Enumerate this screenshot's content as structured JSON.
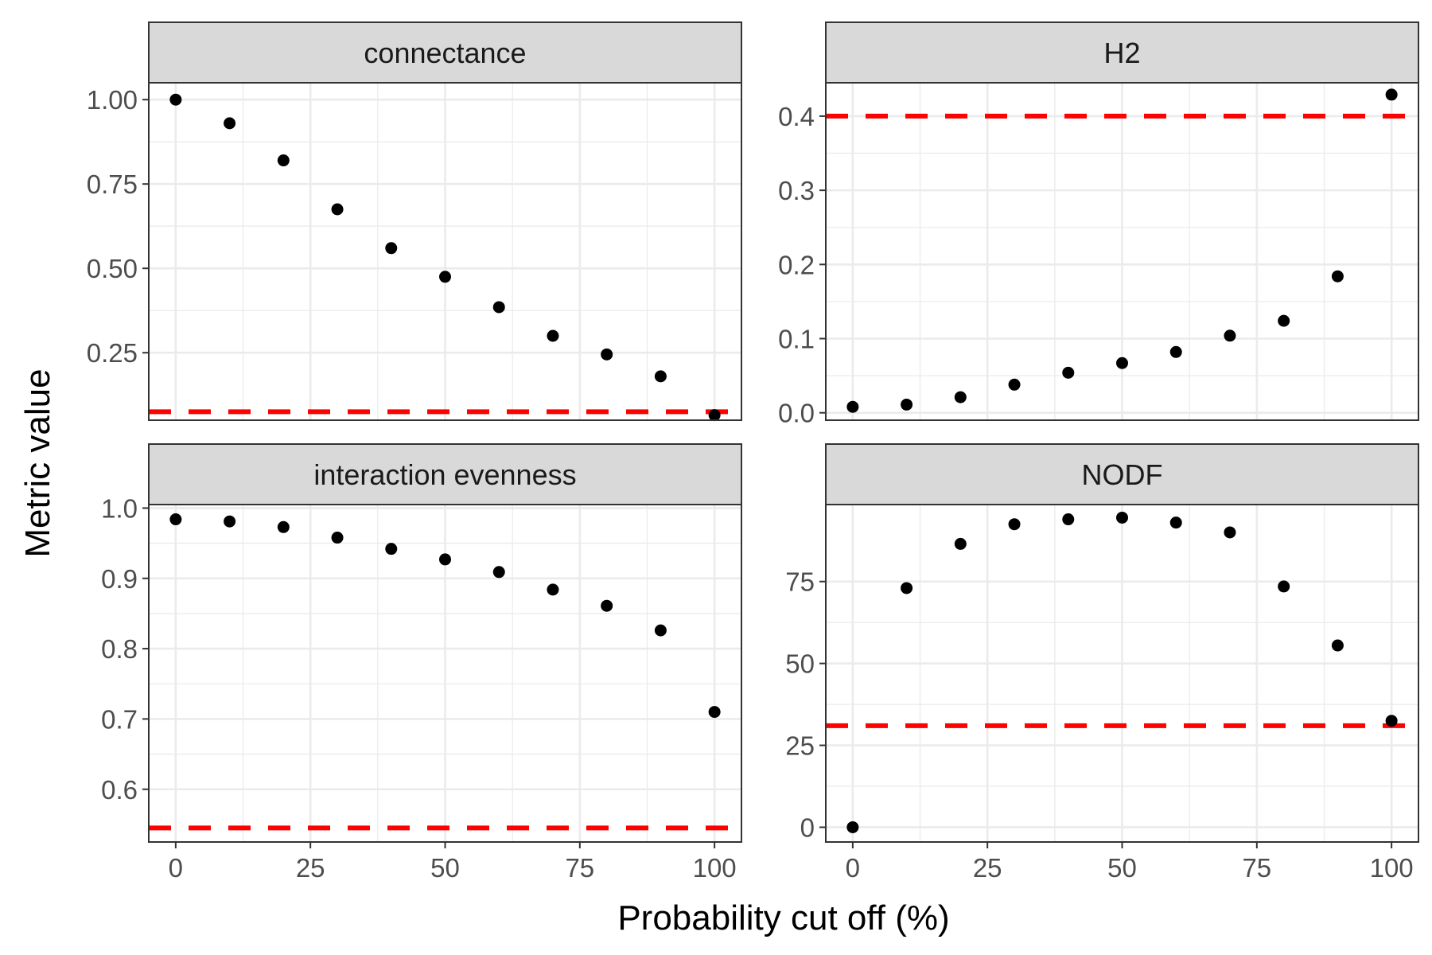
{
  "chart_data": {
    "type": "scatter",
    "layout": "facet-grid 2x2",
    "xlabel": "Probability cut off (%)",
    "ylabel": "Metric value",
    "grid": true,
    "colors": {
      "points": "#000000",
      "reference_line": "#ff0000",
      "strip_fill": "#d9d9d9",
      "grid": "#ebebeb"
    },
    "xlim": [
      -5,
      105
    ],
    "xticks": [
      0,
      25,
      50,
      75,
      100
    ],
    "xtick_labels": [
      "0",
      "25",
      "50",
      "75",
      "100"
    ],
    "panels": [
      {
        "title": "connectance",
        "x": [
          0,
          10,
          20,
          30,
          40,
          50,
          60,
          70,
          80,
          90,
          100
        ],
        "y": [
          1.0,
          0.93,
          0.82,
          0.675,
          0.56,
          0.475,
          0.385,
          0.3,
          0.245,
          0.18,
          0.065
        ],
        "reference_line": 0.075,
        "ylim": [
          0.05,
          1.05
        ],
        "yticks": [
          0.25,
          0.5,
          0.75,
          1.0
        ],
        "ytick_labels": [
          "0.25",
          "0.50",
          "0.75",
          "1.00"
        ]
      },
      {
        "title": "H2",
        "x": [
          0,
          10,
          20,
          30,
          40,
          50,
          60,
          70,
          80,
          90,
          100
        ],
        "y": [
          0.008,
          0.011,
          0.021,
          0.038,
          0.054,
          0.067,
          0.082,
          0.104,
          0.124,
          0.184,
          0.429
        ],
        "reference_line": 0.4,
        "ylim": [
          -0.01,
          0.445
        ],
        "yticks": [
          0.0,
          0.1,
          0.2,
          0.3,
          0.4
        ],
        "ytick_labels": [
          "0.0",
          "0.1",
          "0.2",
          "0.3",
          "0.4"
        ]
      },
      {
        "title": "interaction evenness",
        "x": [
          0,
          10,
          20,
          30,
          40,
          50,
          60,
          70,
          80,
          90,
          100
        ],
        "y": [
          0.984,
          0.981,
          0.973,
          0.958,
          0.942,
          0.927,
          0.909,
          0.884,
          0.861,
          0.826,
          0.71
        ],
        "reference_line": 0.545,
        "ylim": [
          0.525,
          1.005
        ],
        "yticks": [
          0.6,
          0.7,
          0.8,
          0.9,
          1.0
        ],
        "ytick_labels": [
          "0.6",
          "0.7",
          "0.8",
          "0.9",
          "1.0"
        ]
      },
      {
        "title": "NODF",
        "x": [
          0,
          10,
          20,
          30,
          40,
          50,
          60,
          70,
          80,
          90,
          100
        ],
        "y": [
          0,
          73,
          86.5,
          92.5,
          94,
          94.5,
          93,
          90,
          73.5,
          55.5,
          32.5
        ],
        "reference_line": 31,
        "ylim": [
          -4.5,
          98.5
        ],
        "yticks": [
          0,
          25,
          50,
          75
        ],
        "ytick_labels": [
          "0",
          "25",
          "50",
          "75"
        ]
      }
    ]
  }
}
